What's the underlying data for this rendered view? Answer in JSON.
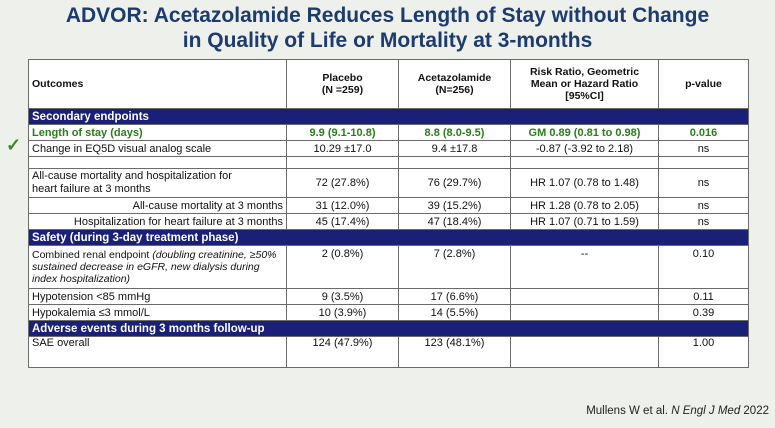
{
  "title": {
    "line1": "ADVOR: Acetazolamide Reduces Length of Stay without Change",
    "line2": "in Quality of Life or Mortality at 3-months"
  },
  "table": {
    "headers": {
      "outcomes": "Outcomes",
      "placebo": "Placebo",
      "placebo_n": "(N =259)",
      "acetazolamide": "Acetazolamide",
      "acetazolamide_n": "(N=256)",
      "ratio_1": "Risk Ratio, Geometric",
      "ratio_2": "Mean or Hazard Ratio",
      "ratio_3": "[95%CI]",
      "pvalue": "p-value"
    },
    "sections": {
      "secondary": "Secondary endpoints",
      "safety": "Safety (during 3-day treatment phase)",
      "adverse": "Adverse events during 3 months follow-up"
    },
    "rows": {
      "los": {
        "label": "Length of stay (days)",
        "placebo": "9.9 (9.1-10.8)",
        "acet": "8.8 (8.0-9.5)",
        "ratio": "GM 0.89 (0.81 to 0.98)",
        "p": "0.016"
      },
      "eq5d": {
        "label": "Change in EQ5D visual analog scale",
        "placebo": "10.29 ±17.0",
        "acet": "9.4 ±17.8",
        "ratio": "-0.87 (-3.92 to 2.18)",
        "p": "ns"
      },
      "allcause_hosp": {
        "label_1": "All-cause mortality and hospitalization for",
        "label_2": "heart failure at 3 months",
        "placebo": "72 (27.8%)",
        "acet": "76 (29.7%)",
        "ratio": "HR 1.07 (0.78 to 1.48)",
        "p": "ns"
      },
      "allcause": {
        "label": "All-cause mortality at 3 months",
        "placebo": "31 (12.0%)",
        "acet": "39 (15.2%)",
        "ratio": "HR 1.28 (0.78 to 2.05)",
        "p": "ns"
      },
      "hosp": {
        "label": "Hospitalization for heart failure at 3 months",
        "placebo": "45 (17.4%)",
        "acet": "47 (18.4%)",
        "ratio": "HR 1.07 (0.71 to 1.59)",
        "p": "ns"
      },
      "renal": {
        "label_main": "Combined renal endpoint ",
        "label_italic": "(doubling creatinine, ≥50% sustained decrease in eGFR, new dialysis during index hospitalization)",
        "placebo": "2 (0.8%)",
        "acet": "7 (2.8%)",
        "ratio": "--",
        "p": "0.10"
      },
      "hypotension": {
        "label": "Hypotension <85 mmHg",
        "placebo": "9 (3.5%)",
        "acet": "17 (6.6%)",
        "ratio": "",
        "p": "0.11"
      },
      "hypokalemia": {
        "label": "Hypokalemia ≤3 mmol/L",
        "placebo": "10 (3.9%)",
        "acet": "14 (5.5%)",
        "ratio": "",
        "p": "0.39"
      },
      "sae": {
        "label": "SAE overall",
        "placebo": "124 (47.9%)",
        "acet": "123 (48.1%)",
        "ratio": "",
        "p": "1.00"
      }
    }
  },
  "citation": {
    "prefix": "Mullens W et al. ",
    "journal": "N Engl J Med",
    "year": " 2022"
  },
  "icons": {
    "check": "check-icon",
    "check_color": "#3a8a25"
  },
  "colors": {
    "title": "#1c3b6e",
    "section_bg": "#1a1f78",
    "highlight": "#2a7d1a"
  }
}
